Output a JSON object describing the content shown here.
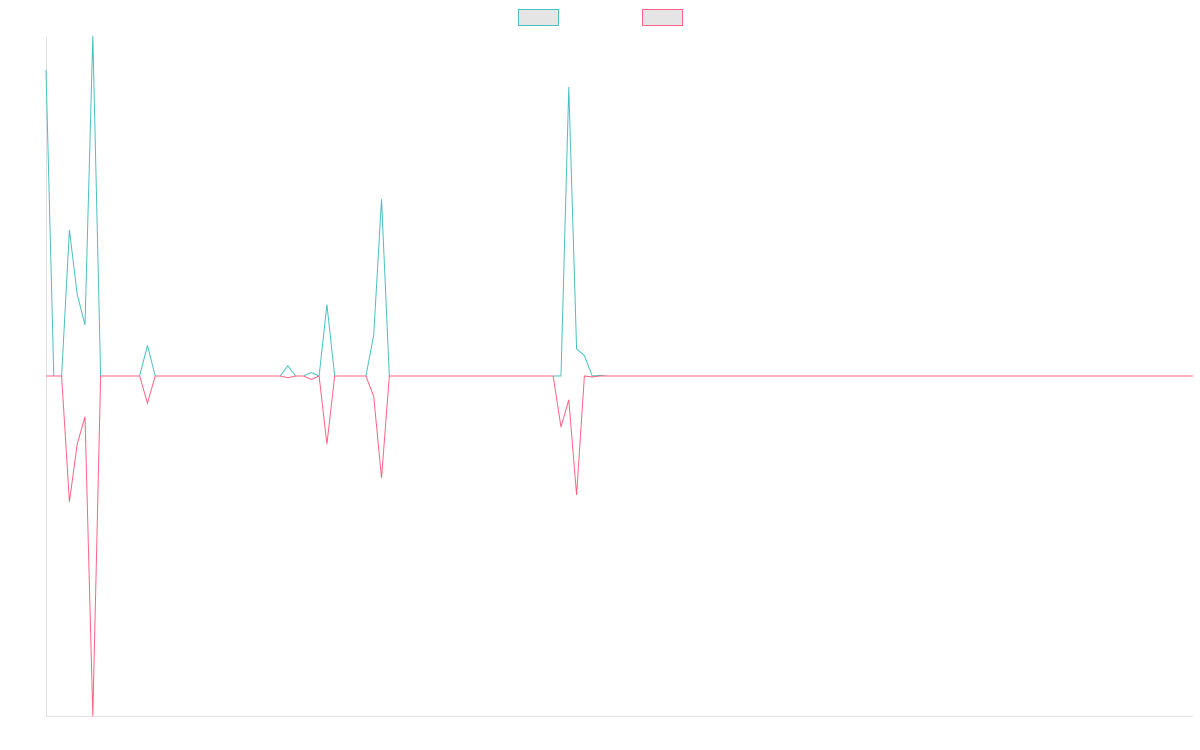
{
  "chart_data": {
    "type": "line",
    "title": "",
    "xlabel": "",
    "ylabel": "",
    "grid": false,
    "legend": {
      "placement": "top-center",
      "show_labels": false
    },
    "ylim": [
      -100,
      100
    ],
    "x": [
      0,
      1,
      2,
      3,
      4,
      5,
      6,
      7,
      8,
      9,
      10,
      11,
      12,
      13,
      14,
      15,
      16,
      17,
      18,
      19,
      20,
      21,
      22,
      23,
      24,
      25,
      26,
      27,
      28,
      29,
      30,
      31,
      32,
      33,
      34,
      35,
      36,
      37,
      38,
      39,
      40,
      41,
      42,
      43,
      44,
      45,
      46,
      47,
      48,
      49,
      50,
      51,
      52,
      53,
      54,
      55,
      56,
      57,
      58,
      59,
      60,
      61,
      62,
      63,
      64,
      65,
      66,
      67,
      68,
      69,
      70,
      71,
      72,
      73,
      74,
      75,
      76,
      77,
      78,
      79,
      80,
      81,
      82,
      83,
      84,
      85,
      86,
      87,
      88,
      89,
      90,
      91,
      92,
      93,
      94,
      95,
      96,
      97,
      98,
      99,
      100,
      101,
      102,
      103,
      104,
      105,
      106,
      107,
      108,
      109,
      110,
      111,
      112,
      113,
      114,
      115,
      116,
      117,
      118,
      119,
      120,
      121,
      122,
      123,
      124,
      125,
      126,
      127,
      128,
      129,
      130,
      131,
      132,
      133,
      134,
      135,
      136,
      137,
      138,
      139,
      140,
      141,
      142,
      143,
      144,
      145,
      146,
      147
    ],
    "series": [
      {
        "color": "#4bc0c0",
        "fill": "#e5e5e5",
        "values": [
          90,
          0,
          0,
          43,
          24,
          15,
          100,
          0,
          0,
          0,
          0,
          0,
          0,
          9,
          0,
          0,
          0,
          0,
          0,
          0,
          0,
          0,
          0,
          0,
          0,
          0,
          0,
          0,
          0,
          0,
          0,
          3,
          0,
          0,
          1,
          0,
          21,
          0,
          0,
          0,
          0,
          0,
          12,
          52,
          0,
          0,
          0,
          0,
          0,
          0,
          0,
          0,
          0,
          0,
          0,
          0,
          0,
          0,
          0,
          0,
          0,
          0,
          0,
          0,
          0,
          0,
          0,
          85,
          8,
          6,
          0,
          0.2,
          0,
          0,
          0,
          0,
          0,
          0,
          0,
          0,
          0,
          0,
          0,
          0,
          0,
          0,
          0,
          0,
          0,
          0,
          0,
          0,
          0,
          0,
          0,
          0,
          0,
          0,
          0,
          0,
          0,
          0,
          0,
          0,
          0,
          0,
          0,
          0,
          0,
          0,
          0,
          0,
          0,
          0,
          0,
          0,
          0,
          0,
          0,
          0,
          0,
          0,
          0,
          0,
          0,
          0,
          0,
          0,
          0,
          0,
          0,
          0,
          0,
          0,
          0,
          0,
          0,
          0,
          0,
          0,
          0,
          0,
          0,
          0,
          0,
          0,
          0,
          0
        ]
      },
      {
        "color": "#ff6384",
        "fill": "#e5e5e5",
        "values": [
          0,
          0,
          0,
          -37,
          -20,
          -12,
          -100,
          0,
          0,
          0,
          0,
          0,
          0,
          -8,
          0,
          0,
          0,
          0,
          0,
          0,
          0,
          0,
          0,
          0,
          0,
          0,
          0,
          0,
          0,
          0,
          0,
          -0.5,
          0,
          0,
          -1,
          0,
          -20,
          0,
          0,
          0,
          0,
          0,
          -6,
          -30,
          0,
          0,
          0,
          0,
          0,
          0,
          0,
          0,
          0,
          0,
          0,
          0,
          0,
          0,
          0,
          0,
          0,
          0,
          0,
          0,
          0,
          0,
          -15,
          -7,
          -35,
          0,
          -0.3,
          0,
          0,
          0,
          0,
          0,
          0,
          0,
          0,
          0,
          0,
          0,
          0,
          0,
          0,
          0,
          0,
          0,
          0,
          0,
          0,
          0,
          0,
          0,
          0,
          0,
          0,
          0,
          0,
          0,
          0,
          0,
          0,
          0,
          0,
          0,
          0,
          0,
          0,
          0,
          0,
          0,
          0,
          0,
          0,
          0,
          0,
          0,
          0,
          0,
          0,
          0,
          0,
          0,
          0,
          0,
          0,
          0,
          0,
          0,
          0,
          0,
          0,
          0,
          0,
          0,
          0,
          0,
          0,
          0,
          0,
          0,
          0,
          0,
          0,
          0,
          0,
          0
        ]
      }
    ]
  }
}
